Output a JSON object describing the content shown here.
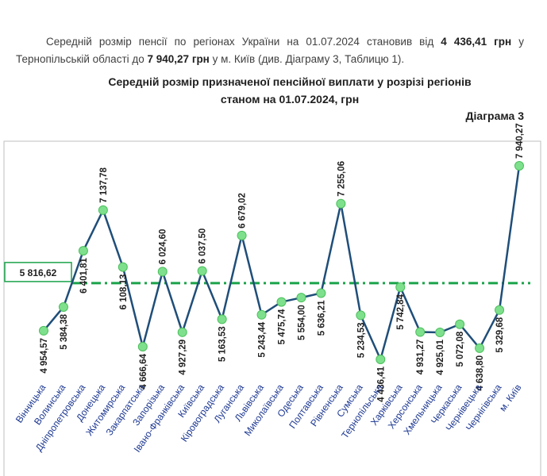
{
  "paragraph": [
    {
      "text": "Середній розмір пенсії по регіонах України на 01.07.2024 становив від ",
      "bold": false
    },
    {
      "text": "4 436,41 грн",
      "bold": true
    },
    {
      "text": " у Тернопільській області до ",
      "bold": false
    },
    {
      "text": "7 940,27 грн",
      "bold": true
    },
    {
      "text": " у м. Київ (див. Діаграму 3, Таблицю 1).",
      "bold": false
    }
  ],
  "chart_data": {
    "type": "line",
    "title": "Середній розмір призначеної пенсійної виплати у розрізі регіонів",
    "subtitle": "станом на 01.07.2024, грн",
    "caption": "Діаграма 3",
    "categories": [
      "Вінницька",
      "Волинська",
      "Дніпропетровська",
      "Донецька",
      "Житомирська",
      "Закарпатська",
      "Запорізька",
      "Івано-Франківська",
      "Київська",
      "Кіровоградська",
      "Луганська",
      "Львівська",
      "Миколаївська",
      "Одеська",
      "Полтавська",
      "Рівненська",
      "Сумська",
      "Тернопільська",
      "Харківська",
      "Херсонська",
      "Хмельницька",
      "Черкаська",
      "Чернівецька",
      "Чернігівська",
      "м. Київ"
    ],
    "values": [
      4954.57,
      5384.38,
      6401.81,
      7137.78,
      6108.13,
      4666.64,
      6024.6,
      4927.29,
      6037.5,
      5163.53,
      6679.02,
      5243.44,
      5475.74,
      5554.0,
      5636.21,
      7255.06,
      5234.53,
      4436.41,
      5742.84,
      4931.27,
      4925.01,
      5072.08,
      4638.8,
      5329.68,
      7940.27
    ],
    "value_labels": [
      "4 954,57",
      "5 384,38",
      "6 401,81",
      "7 137,78",
      "6 108,13",
      "4 666,64",
      "6 024,60",
      "4 927,29",
      "6 037,50",
      "5 163,53",
      "6 679,02",
      "5 243,44",
      "5 475,74",
      "5 554,00",
      "5 636,21",
      "7 255,06",
      "5 234,53",
      "4 436,41",
      "5 742,84",
      "4 931,27",
      "4 925,01",
      "5 072,08",
      "4 638,80",
      "5 329,68",
      "7 940,27"
    ],
    "color": "#1f4e79",
    "marker_color": "#7ee08c",
    "reference_line": {
      "value": 5816.62,
      "label": "5 816,62",
      "color": "#1aa34a"
    }
  }
}
